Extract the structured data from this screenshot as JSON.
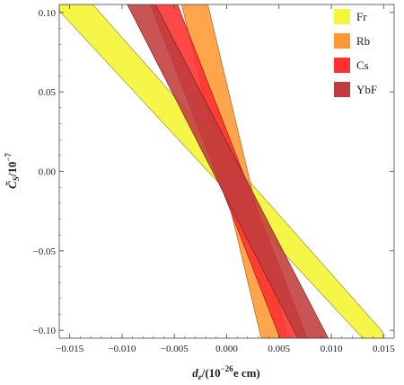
{
  "chart_data": {
    "type": "area",
    "title": "",
    "xlabel": "d_e/(10^-26 e cm)",
    "ylabel": "C̃_S/10^-7",
    "xlim": [
      -0.016,
      0.016
    ],
    "ylim": [
      -0.105,
      0.105
    ],
    "x_ticks": [
      -0.015,
      -0.01,
      -0.005,
      0.0,
      0.005,
      0.01,
      0.015
    ],
    "x_tick_labels": [
      "−0.015",
      "−0.010",
      "−0.005",
      "0.000",
      "0.005",
      "0.010",
      "0.015"
    ],
    "y_ticks": [
      -0.1,
      -0.05,
      0.0,
      0.05,
      0.1
    ],
    "y_tick_labels": [
      "−0.10",
      "−0.05",
      "0.00",
      "0.05",
      "0.10"
    ],
    "legend_position": "top-right",
    "series": [
      {
        "name": "Fr",
        "color": "#f5f53a",
        "edge_color": "#9a9a30",
        "polygon": [
          [
            -0.016,
            0.105
          ],
          [
            -0.0128,
            0.105
          ],
          [
            0.0149,
            -0.101
          ],
          [
            0.0149,
            -0.105
          ],
          [
            0.013,
            -0.105
          ],
          [
            -0.016,
            0.101
          ]
        ]
      },
      {
        "name": "Rb",
        "color": "#ff9933",
        "edge_color": "#b06418",
        "polygon": [
          [
            -0.0018,
            0.105
          ],
          [
            -0.0043,
            0.105
          ],
          [
            0.0033,
            -0.105
          ],
          [
            0.0058,
            -0.105
          ]
        ]
      },
      {
        "name": "Cs",
        "color": "#ff3030",
        "edge_color": "#a01818",
        "polygon": [
          [
            -0.0047,
            0.105
          ],
          [
            -0.0073,
            0.105
          ],
          [
            0.0051,
            -0.105
          ],
          [
            0.0077,
            -0.105
          ]
        ]
      },
      {
        "name": "YbF",
        "color": "#c03c3c",
        "edge_color": "#7a2424",
        "polygon": [
          [
            -0.0068,
            0.105
          ],
          [
            -0.0095,
            0.105
          ],
          [
            0.0068,
            -0.105
          ],
          [
            0.0097,
            -0.105
          ]
        ]
      }
    ]
  }
}
